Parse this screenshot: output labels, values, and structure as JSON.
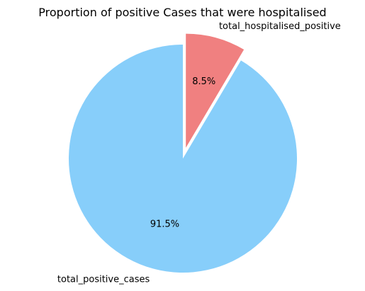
{
  "chart_data": {
    "type": "pie",
    "title": "Proportion of positive Cases that were hospitalised",
    "slices": [
      {
        "label": "total_hospitalised_positive",
        "value": 8.5,
        "pct_label": "8.5%",
        "color": "#F08080",
        "exploded": true
      },
      {
        "label": "total_positive_cases",
        "value": 91.5,
        "pct_label": "91.5%",
        "color": "#87CEFA",
        "exploded": false
      }
    ],
    "start_angle": "top (90°)",
    "direction": "clockwise",
    "legend": "none"
  }
}
